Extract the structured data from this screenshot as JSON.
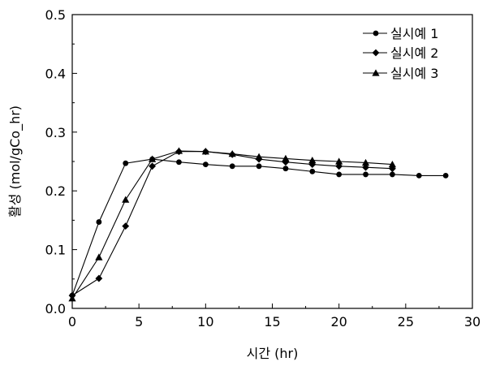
{
  "chart_data": {
    "type": "line",
    "xlabel": "시간 (hr)",
    "ylabel": "활성 (mol/gCo_hr)",
    "xlim": [
      0,
      30
    ],
    "ylim": [
      0,
      0.5
    ],
    "xticks": [
      "0",
      "5",
      "10",
      "15",
      "20",
      "25",
      "30"
    ],
    "yticks": [
      "0.0",
      "0.1",
      "0.2",
      "0.3",
      "0.4",
      "0.5"
    ],
    "grid": false,
    "legend_position": "top-right",
    "series": [
      {
        "name": "실시예 1",
        "marker": "circle",
        "x": [
          0,
          2,
          4,
          6,
          8,
          10,
          12,
          14,
          16,
          18,
          20,
          22,
          24,
          26,
          28
        ],
        "y": [
          0.022,
          0.147,
          0.247,
          0.254,
          0.249,
          0.245,
          0.242,
          0.242,
          0.238,
          0.233,
          0.228,
          0.228,
          0.228,
          0.226,
          0.226
        ]
      },
      {
        "name": "실시예 2",
        "marker": "diamond",
        "x": [
          0,
          2,
          4,
          6,
          8,
          10,
          12,
          14,
          16,
          18,
          20,
          22,
          24
        ],
        "y": [
          0.022,
          0.051,
          0.14,
          0.242,
          0.267,
          0.267,
          0.262,
          0.254,
          0.249,
          0.245,
          0.242,
          0.24,
          0.238
        ]
      },
      {
        "name": "실시예 3",
        "marker": "triangle",
        "x": [
          0,
          2,
          4,
          6,
          8,
          10,
          12,
          14,
          16,
          18,
          20,
          22,
          24
        ],
        "y": [
          0.017,
          0.087,
          0.185,
          0.254,
          0.268,
          0.267,
          0.263,
          0.258,
          0.255,
          0.252,
          0.25,
          0.248,
          0.245
        ]
      }
    ]
  }
}
